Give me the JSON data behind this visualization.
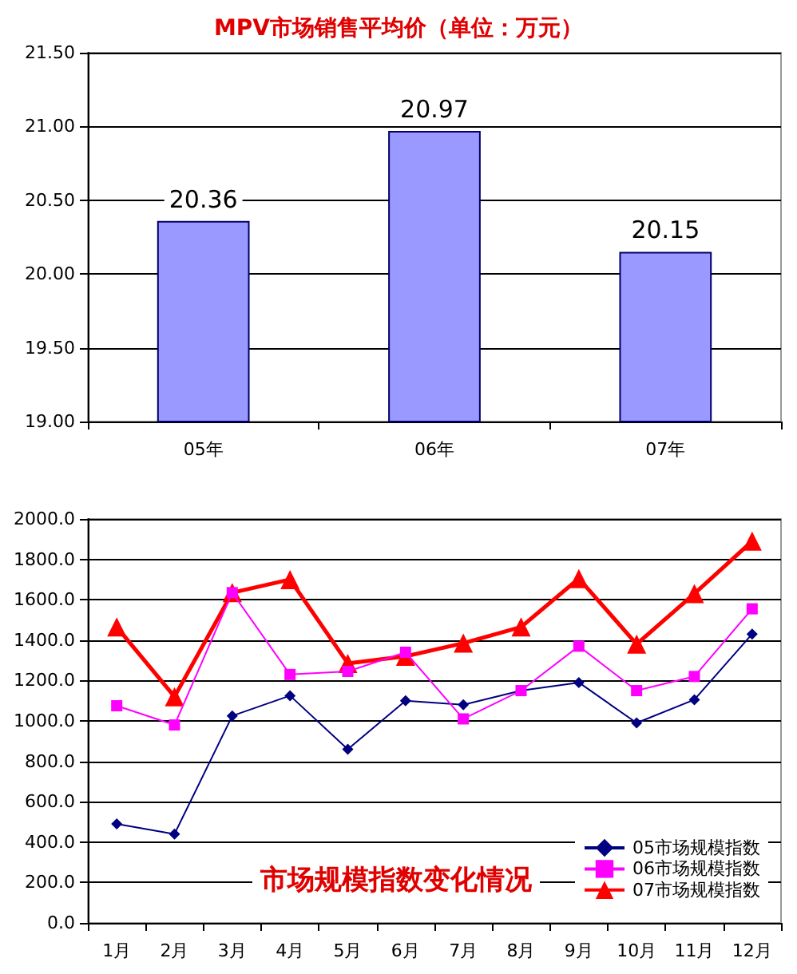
{
  "chart_data": [
    {
      "type": "bar",
      "title": "MPV市场销售平均价（单位：万元）",
      "categories": [
        "05年",
        "06年",
        "07年"
      ],
      "series": [
        {
          "color": "#9999ff",
          "values": [
            20.36,
            20.97,
            20.15
          ]
        }
      ],
      "ylim": [
        19,
        21.5
      ],
      "yticks": [
        {
          "value": 19,
          "label": "19.00"
        },
        {
          "value": 19.5,
          "label": "19.50"
        },
        {
          "value": 20,
          "label": "20.00"
        },
        {
          "value": 20.5,
          "label": "20.50"
        },
        {
          "value": 21,
          "label": "21.00"
        },
        {
          "value": 21.5,
          "label": "21.50"
        }
      ],
      "grid": "y",
      "data_labels": true,
      "legend": false
    },
    {
      "type": "line",
      "title": "市场规模指数变化情况",
      "categories": [
        "1月",
        "2月",
        "3月",
        "4月",
        "5月",
        "6月",
        "7月",
        "8月",
        "9月",
        "10月",
        "11月",
        "12月"
      ],
      "series": [
        {
          "name": "05市场规模指数",
          "color": "#000080",
          "marker": "diamond",
          "values": [
            490,
            440,
            1025,
            1125,
            860,
            1100,
            1080,
            1150,
            1190,
            990,
            1105,
            1430
          ]
        },
        {
          "name": "06市场规模指数",
          "color": "#ff00ff",
          "marker": "square",
          "values": [
            1075,
            980,
            1635,
            1230,
            1245,
            1340,
            1010,
            1150,
            1370,
            1150,
            1220,
            1555
          ]
        },
        {
          "name": "07市场规模指数",
          "color": "#ff0000",
          "marker": "triangle",
          "values": [
            1465,
            1120,
            1635,
            1700,
            1285,
            1320,
            1385,
            1465,
            1705,
            1380,
            1630,
            1890
          ]
        }
      ],
      "ylim": [
        0,
        2000
      ],
      "yticks": [
        {
          "value": 0,
          "label": "0.0"
        },
        {
          "value": 200,
          "label": "200.0"
        },
        {
          "value": 400,
          "label": "400.0"
        },
        {
          "value": 600,
          "label": "600.0"
        },
        {
          "value": 800,
          "label": "800.0"
        },
        {
          "value": 1000,
          "label": "1000.0"
        },
        {
          "value": 1200,
          "label": "1200.0"
        },
        {
          "value": 1400,
          "label": "1400.0"
        },
        {
          "value": 1600,
          "label": "1600.0"
        },
        {
          "value": 1800,
          "label": "1800.0"
        },
        {
          "value": 2000,
          "label": "2000.0"
        }
      ],
      "grid": "y",
      "legend": "bottom right"
    }
  ]
}
